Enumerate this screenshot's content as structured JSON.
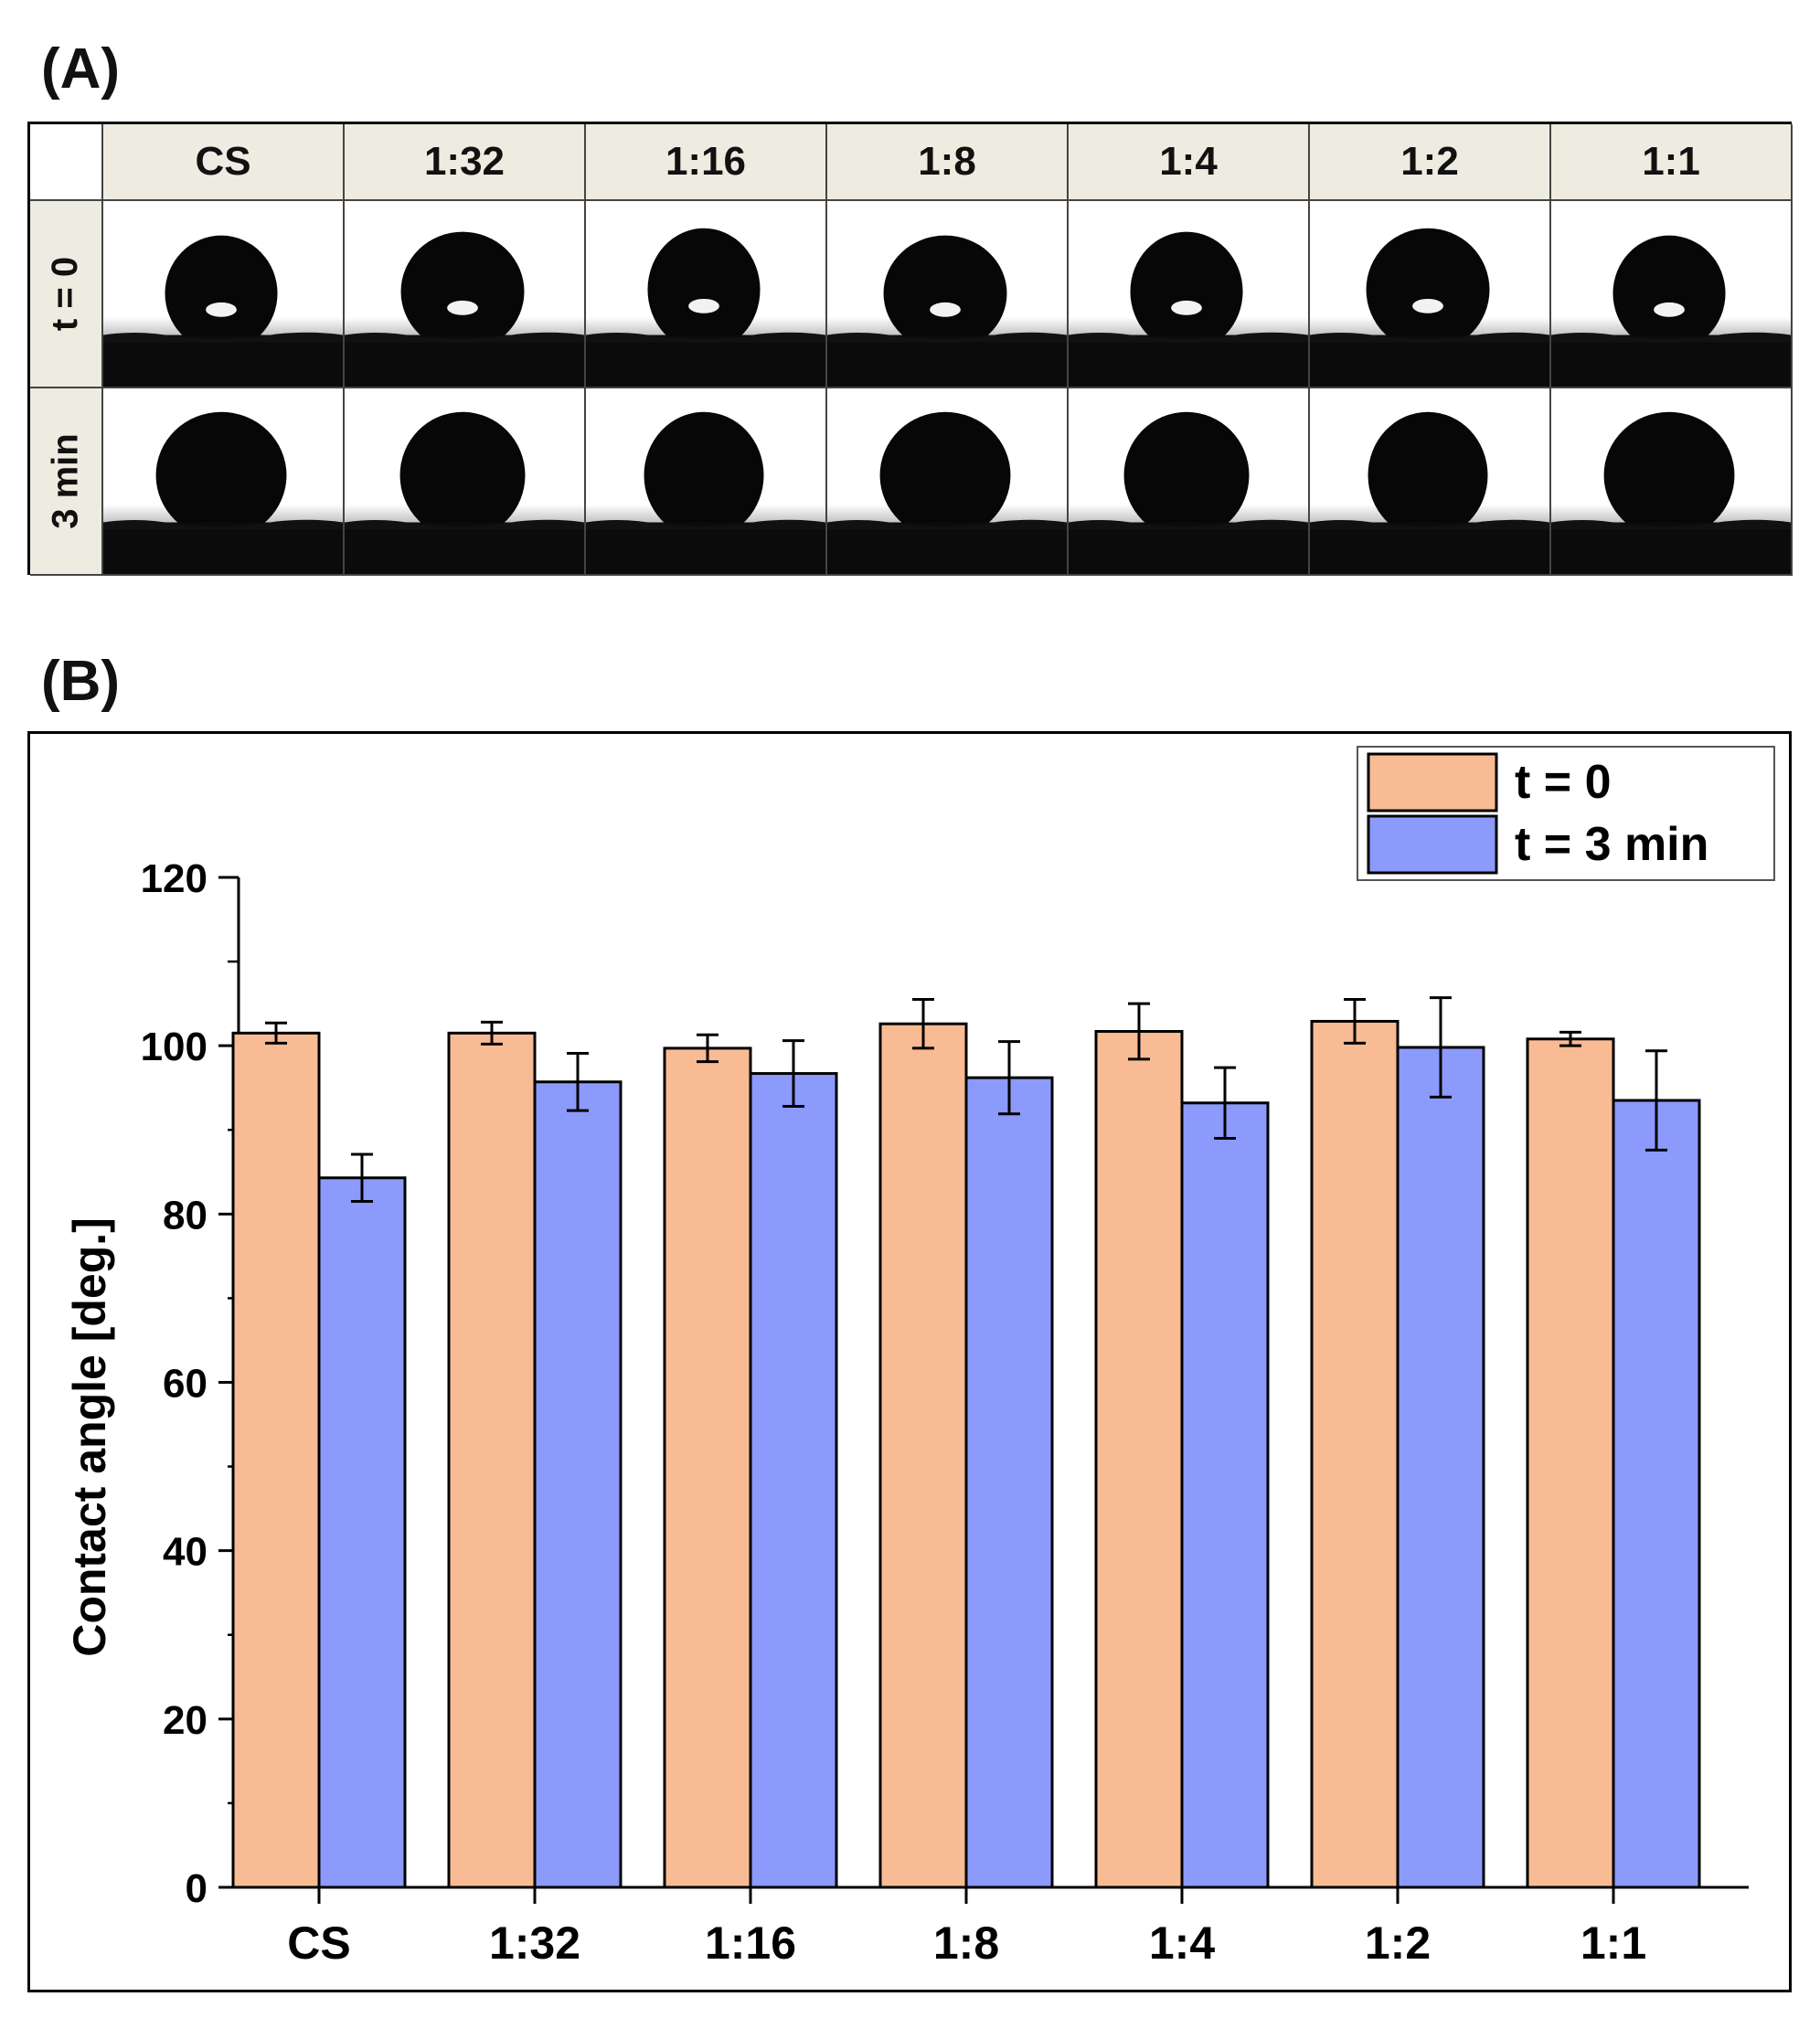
{
  "panel_a": {
    "label": "(A)",
    "column_headers": [
      "CS",
      "1:32",
      "1:16",
      "1:8",
      "1:4",
      "1:2",
      "1:1"
    ],
    "row_headers": [
      "t = 0",
      "3 min"
    ],
    "image_description_icon": "water-droplet-photo"
  },
  "panel_b": {
    "label": "(B)"
  },
  "chart_data": {
    "type": "bar",
    "title": "",
    "xlabel": "",
    "ylabel": "Contact angle [deg.]",
    "ylim": [
      0,
      120
    ],
    "yticks": [
      0,
      20,
      40,
      60,
      80,
      100,
      120
    ],
    "categories": [
      "CS",
      "1:32",
      "1:16",
      "1:8",
      "1:4",
      "1:2",
      "1:1"
    ],
    "series": [
      {
        "name": "t = 0",
        "color": "#f9bb93",
        "values": [
          101.5,
          101.5,
          99.7,
          102.6,
          101.7,
          102.9,
          100.8
        ],
        "errors": [
          1.2,
          1.3,
          1.6,
          2.9,
          3.3,
          2.6,
          0.8
        ]
      },
      {
        "name": "t = 3 min",
        "color": "#8c9afb",
        "values": [
          84.3,
          95.7,
          96.7,
          96.2,
          93.2,
          99.8,
          93.5
        ],
        "errors": [
          2.8,
          3.4,
          3.9,
          4.3,
          4.2,
          5.9,
          5.9
        ]
      }
    ],
    "legend_position": "top-right"
  }
}
